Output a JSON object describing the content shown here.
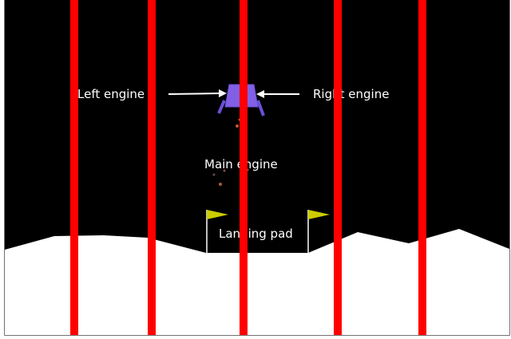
{
  "labels": {
    "left_engine": "Left engine",
    "right_engine": "Right engine",
    "main_engine": "Main engine",
    "landing_pad": "Landing pad"
  },
  "colors": {
    "sky": "#000000",
    "terrain": "#ffffff",
    "frame": "#444444",
    "stripe": "#ff0000",
    "lander_body": "#8160e6",
    "lander_legs": "#6a50d6",
    "flag": "#cccc00",
    "flag_pole": "#ffffff",
    "particle": "#c05a2a",
    "label_text": "#ffffff"
  },
  "icons": {
    "lander": "lunar-lander-sprite",
    "flag": "landing-flag",
    "arrow": "pointer-arrow"
  }
}
